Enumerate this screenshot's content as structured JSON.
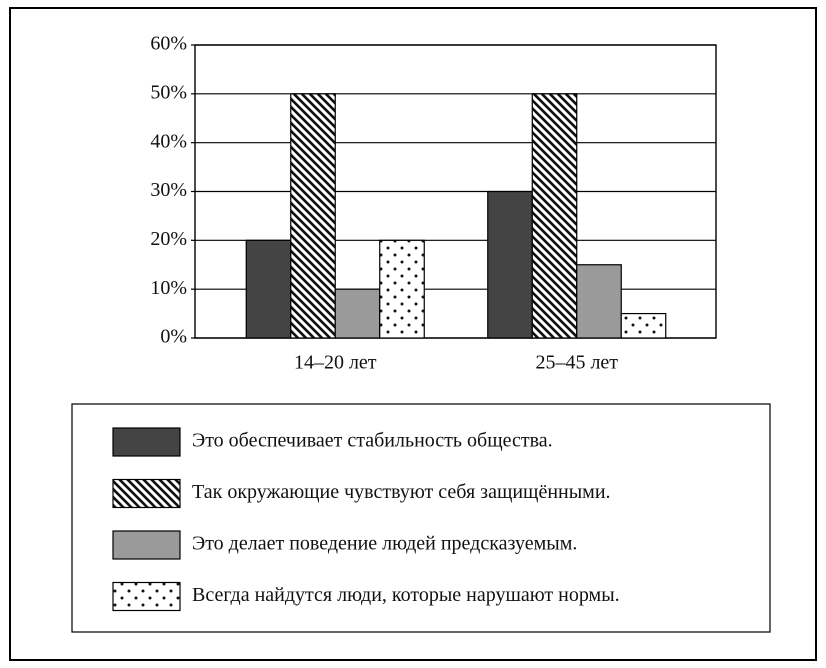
{
  "chart_data": {
    "type": "bar",
    "categories": [
      "14–20 лет",
      "25–45 лет"
    ],
    "series": [
      {
        "name": "Это обеспечивает стабильность общества.",
        "color": "#444444",
        "pattern": "solid",
        "values": [
          20,
          30
        ]
      },
      {
        "name": "Так окружающие чувствуют себя защищёнными.",
        "color": "#111111",
        "pattern": "hatch",
        "values": [
          50,
          50
        ]
      },
      {
        "name": "Это делает поведение людей предсказуемым.",
        "color": "#9a9a9a",
        "pattern": "solid",
        "values": [
          10,
          15
        ]
      },
      {
        "name": "Всегда найдутся люди, которые нарушают нормы.",
        "color": "#111111",
        "pattern": "dots",
        "values": [
          20,
          5
        ]
      }
    ],
    "ylim": [
      0,
      60
    ],
    "yticks": [
      {
        "value": 0,
        "label": "0%"
      },
      {
        "value": 10,
        "label": "10%"
      },
      {
        "value": 20,
        "label": "20%"
      },
      {
        "value": 30,
        "label": "30%"
      },
      {
        "value": 40,
        "label": "40%"
      },
      {
        "value": 50,
        "label": "50%"
      },
      {
        "value": 60,
        "label": "60%"
      }
    ],
    "grid": true
  }
}
